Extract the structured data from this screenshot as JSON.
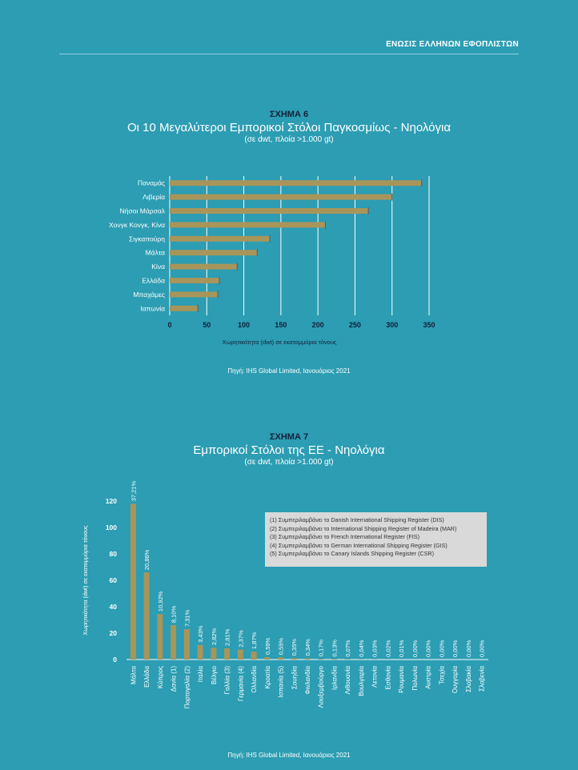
{
  "header": {
    "title": "ΕΝΩΣΙΣ ΕΛΛΗΝΩΝ ΕΦΟΠΛΙΣΤΩΝ"
  },
  "colors": {
    "background": "#2c9db3",
    "bar": "#a8955a",
    "dark_text": "#12203a"
  },
  "figure6": {
    "number": "ΣΧΗΜΑ 6",
    "title": "Οι 10 Μεγαλύτεροι Εμπορικοί Στόλοι Παγκοσμίως - Νηολόγια",
    "subtitle": "(σε dwt, πλοία >1.000 gt)",
    "source": "Πηγή: IHS Global Limited, Ιανουάριος 2021"
  },
  "figure7": {
    "number": "ΣΧΗΜΑ 7",
    "title": "Εμπορικοί Στόλοι της ΕΕ - Νηολόγια",
    "subtitle": "(σε dwt, πλοία >1.000 gt)",
    "source": "Πηγή: IHS Global Limited, Ιανουάριος 2021",
    "legend": [
      "(1) Συμπεριλαμβάνει το Danish International Shipping Register (DIS)",
      "(2) Συμπεριλαμβάνει το International Shipping Register of Madeira (MAR)",
      "(3) Συμπεριλαμβάνει το French International Register (FIS)",
      "(4) Συμπεριλαμβάνει το German International Shipping Register (GIS)",
      "(5) Συμπεριλαμβάνει το Canary Islands Shipping Register (CSR)"
    ]
  },
  "chart_data": [
    {
      "type": "bar",
      "orientation": "horizontal",
      "title": "Οι 10 Μεγαλύτεροι Εμπορικοί Στόλοι Παγκοσμίως - Νηολόγια",
      "xlabel": "Χωρητικότητα (dwt) σε εκατομμύρια τόνους",
      "ylabel": "",
      "categories": [
        "Παναμάς",
        "Λιβερία",
        "Νήσοι Μάρσαλ",
        "Χονγκ Κονγκ, Κίνα",
        "Σιγκαπούρη",
        "Μάλτα",
        "Κίνα",
        "Ελλάδα",
        "Μπαχάμες",
        "Ιαπωνία"
      ],
      "values": [
        340,
        300,
        268,
        210,
        135,
        118,
        91,
        67,
        65,
        38
      ],
      "xlim": [
        0,
        350
      ],
      "xticks": [
        0,
        50,
        100,
        150,
        200,
        250,
        300,
        350
      ],
      "grid": true
    },
    {
      "type": "bar",
      "orientation": "vertical",
      "title": "Εμπορικοί Στόλοι της ΕΕ - Νηολόγια",
      "ylabel": "Χωρητικότητα (dwt) σε εκατομμύρια τόνους",
      "xlabel": "",
      "categories": [
        "Μάλτα",
        "Ελλάδα",
        "Κύπρος",
        "Δανία (1)",
        "Πορτογαλία (2)",
        "Ιταλία",
        "Βέλγιο",
        "Γαλλία (3)",
        "Γερμανία (4)",
        "Ολλανδία",
        "Κροατία",
        "Ισπανία (5)",
        "Σουηδία",
        "Φινλανδία",
        "Λουξεμβούργο",
        "Ιρλανδία",
        "Λιθουανία",
        "Βουλγαρία",
        "Λετονία",
        "Εσθονία",
        "Ρουμανία",
        "Πολωνία",
        "Αυστρία",
        "Τσεχία",
        "Ουγγαρία",
        "Σλοβακία",
        "Σλοβενία"
      ],
      "values": [
        118,
        66,
        34.5,
        26,
        23,
        11,
        9,
        8.5,
        7.5,
        6,
        1.8,
        1.7,
        1.1,
        1.0,
        0.5,
        0.4,
        0.2,
        0.12,
        0.1,
        0.06,
        0.03,
        0.01,
        0.01,
        0.01,
        0.01,
        0.01,
        0.01
      ],
      "data_labels": [
        "37,21%",
        "20,86%",
        "10,92%",
        "8,10%",
        "7,31%",
        "3,43%",
        "2,82%",
        "2,81%",
        "2,37%",
        "1,87%",
        "0,59%",
        "0,55%",
        "0,35%",
        "0,34%",
        "0,17%",
        "0,13%",
        "0,07%",
        "0,04%",
        "0,03%",
        "0,02%",
        "0,01%",
        "0,00%",
        "0,00%",
        "0,00%",
        "0,00%",
        "0,00%",
        "0,00%"
      ],
      "ylim": [
        0,
        120
      ],
      "yticks": [
        0,
        20,
        40,
        60,
        80,
        100,
        120
      ],
      "grid": false
    }
  ]
}
